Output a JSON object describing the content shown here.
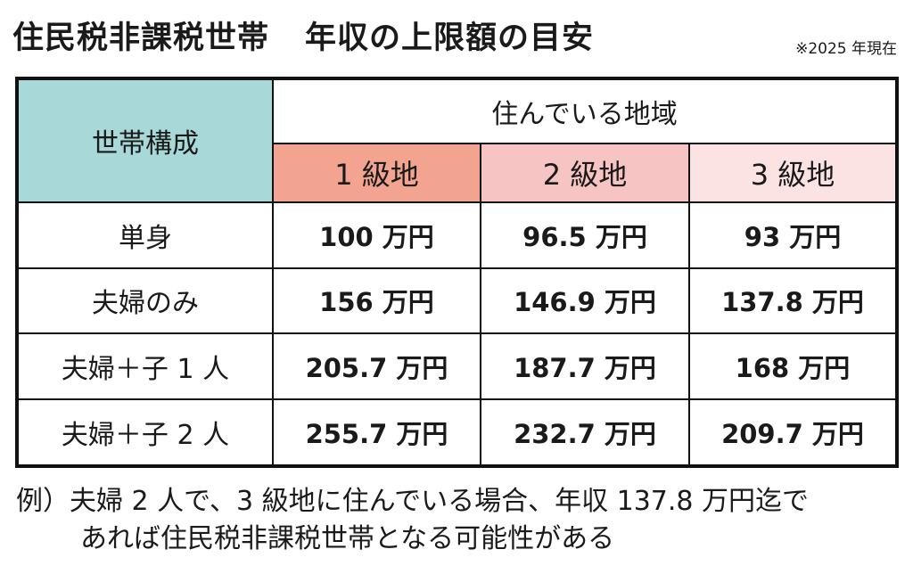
{
  "title": {
    "main": "住民税非課税世帯",
    "sub": "年収の上限額の目安"
  },
  "note": "※2025 年現在",
  "table": {
    "config_header": "世帯構成",
    "region_header": "住んでいる地域",
    "levels": [
      "1 級地",
      "2 級地",
      "3 級地"
    ],
    "level_colors": [
      "#f2a491",
      "#f6c4c2",
      "#fbe3e3"
    ],
    "header_color": "#a8d8d8",
    "rows": [
      {
        "label": "単身",
        "values": [
          "100 万円",
          "96.5 万円",
          "93 万円"
        ]
      },
      {
        "label": "夫婦のみ",
        "values": [
          "156 万円",
          "146.9 万円",
          "137.8 万円"
        ]
      },
      {
        "label": "夫婦＋子 1 人",
        "values": [
          "205.7 万円",
          "187.7 万円",
          "168 万円"
        ]
      },
      {
        "label": "夫婦＋子 2 人",
        "values": [
          "255.7 万円",
          "232.7 万円",
          "209.7 万円"
        ]
      }
    ]
  },
  "footer": {
    "line1": "例）夫婦 2 人で、3 級地に住んでいる場合、年収 137.8 万円迄で",
    "line2": "あれば住民税非課税世帯となる可能性がある"
  }
}
